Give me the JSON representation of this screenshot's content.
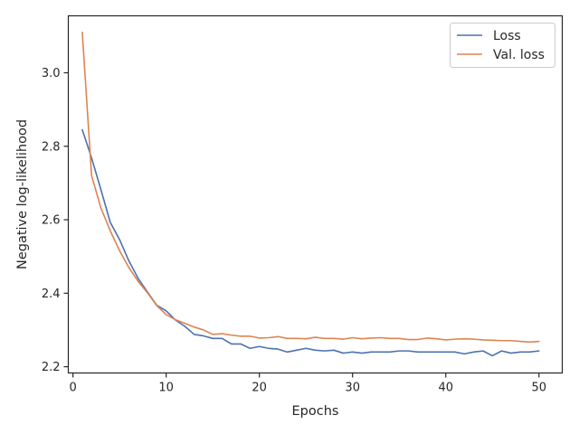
{
  "chart_data": {
    "type": "line",
    "title": "",
    "xlabel": "Epochs",
    "ylabel": "Negative log-likelihood",
    "xlim": [
      -0.5,
      52.5
    ],
    "ylim": [
      2.183,
      3.155
    ],
    "xticks": [
      0,
      10,
      20,
      30,
      40,
      50
    ],
    "yticks": [
      2.2,
      2.4,
      2.6,
      2.8,
      3.0
    ],
    "xtick_labels": [
      "0",
      "10",
      "20",
      "30",
      "40",
      "50"
    ],
    "ytick_labels": [
      "2.2",
      "2.4",
      "2.6",
      "2.8",
      "3.0"
    ],
    "grid": false,
    "legend_position": "top-right",
    "x": [
      1,
      2,
      3,
      4,
      5,
      6,
      7,
      8,
      9,
      10,
      11,
      12,
      13,
      14,
      15,
      16,
      17,
      18,
      19,
      20,
      21,
      22,
      23,
      24,
      25,
      26,
      27,
      28,
      29,
      30,
      31,
      32,
      33,
      34,
      35,
      36,
      37,
      38,
      39,
      40,
      41,
      42,
      43,
      44,
      45,
      46,
      47,
      48,
      49,
      50
    ],
    "series": [
      {
        "name": "Loss",
        "color": "#4c72b0",
        "values": [
          2.845,
          2.768,
          2.682,
          2.593,
          2.546,
          2.488,
          2.44,
          2.403,
          2.367,
          2.352,
          2.327,
          2.31,
          2.288,
          2.284,
          2.277,
          2.277,
          2.262,
          2.262,
          2.25,
          2.255,
          2.25,
          2.248,
          2.24,
          2.245,
          2.25,
          2.245,
          2.243,
          2.245,
          2.237,
          2.24,
          2.237,
          2.24,
          2.24,
          2.24,
          2.243,
          2.243,
          2.24,
          2.24,
          2.24,
          2.24,
          2.24,
          2.235,
          2.24,
          2.243,
          2.23,
          2.243,
          2.237,
          2.24,
          2.24,
          2.243
        ]
      },
      {
        "name": "Val. loss",
        "color": "#dd8452",
        "values": [
          3.11,
          2.72,
          2.632,
          2.57,
          2.516,
          2.47,
          2.432,
          2.401,
          2.366,
          2.342,
          2.328,
          2.318,
          2.308,
          2.3,
          2.288,
          2.29,
          2.286,
          2.283,
          2.283,
          2.278,
          2.279,
          2.282,
          2.277,
          2.277,
          2.276,
          2.28,
          2.277,
          2.277,
          2.275,
          2.279,
          2.276,
          2.278,
          2.279,
          2.277,
          2.277,
          2.274,
          2.274,
          2.278,
          2.276,
          2.273,
          2.275,
          2.276,
          2.275,
          2.273,
          2.272,
          2.271,
          2.271,
          2.269,
          2.267,
          2.269
        ]
      }
    ]
  }
}
